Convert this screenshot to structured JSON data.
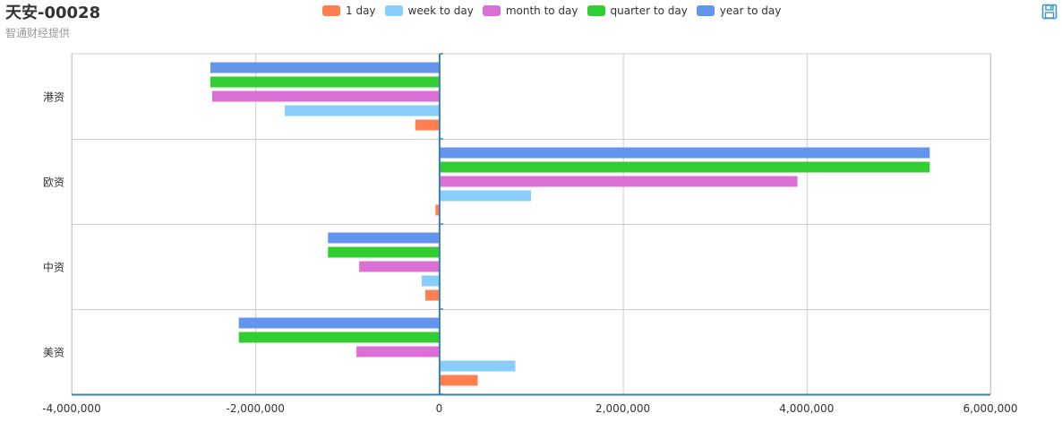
{
  "header": {
    "title": "天安-00028",
    "subtitle": "智通财经提供"
  },
  "toolbar": {
    "save_icon": "save-icon"
  },
  "chart_data": {
    "type": "bar",
    "orientation": "horizontal",
    "categories": [
      "港资",
      "欧资",
      "中资",
      "美资"
    ],
    "series": [
      {
        "name": "1 day",
        "color": "#ff7f50",
        "values": [
          -260000,
          -40000,
          -150000,
          420000
        ]
      },
      {
        "name": "week to day",
        "color": "#87cefa",
        "values": [
          -1680000,
          1000000,
          -190000,
          830000
        ]
      },
      {
        "name": "month to day",
        "color": "#da70d6",
        "values": [
          -2470000,
          3900000,
          -870000,
          -900000
        ]
      },
      {
        "name": "quarter to day",
        "color": "#32cd32",
        "values": [
          -2490000,
          5340000,
          -1210000,
          -2180000
        ]
      },
      {
        "name": "year to day",
        "color": "#6495ed",
        "values": [
          -2490000,
          5340000,
          -1210000,
          -2180000
        ]
      }
    ],
    "xlim": [
      -4000000,
      6000000
    ],
    "xticks": [
      -4000000,
      -2000000,
      0,
      2000000,
      4000000,
      6000000
    ],
    "xtick_labels": [
      "-4,000,000",
      "-2,000,000",
      "0",
      "2,000,000",
      "4,000,000",
      "6,000,000"
    ],
    "grid": true,
    "legend_position": "top-center",
    "xlabel": "",
    "ylabel": ""
  }
}
